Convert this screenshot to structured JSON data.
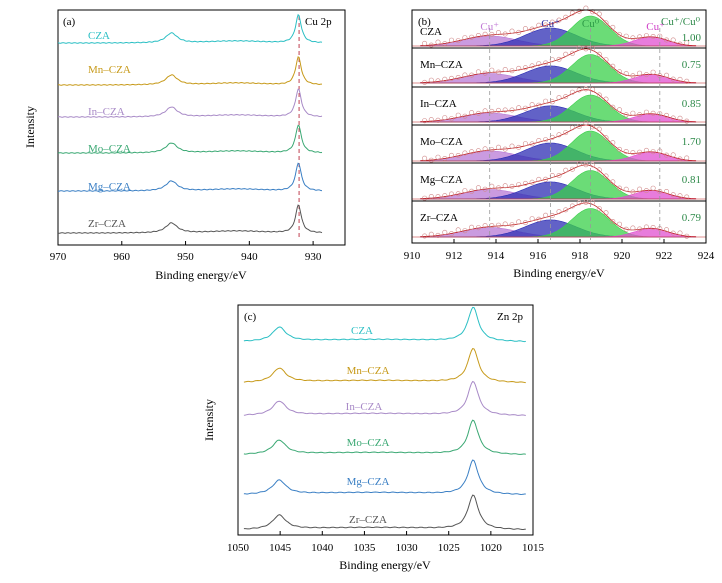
{
  "chart_data": [
    {
      "type": "line",
      "panel_label": "(a)",
      "title": "Cu 2p",
      "xlabel": "Binding energy/eV",
      "ylabel": "Intensity",
      "xlim": [
        970,
        925
      ],
      "xticks": [
        970,
        960,
        950,
        940,
        930
      ],
      "reference_line": 932.2,
      "series": [
        {
          "name": "CZA",
          "color": "#2bbfc4"
        },
        {
          "name": "Mn–CZA",
          "color": "#c79a1a"
        },
        {
          "name": "In–CZA",
          "color": "#a88ac7"
        },
        {
          "name": "Mo–CZA",
          "color": "#3aa873"
        },
        {
          "name": "Mg–CZA",
          "color": "#3a7fc4"
        },
        {
          "name": "Zr–CZA",
          "color": "#555555"
        }
      ],
      "peaks": [
        952.2,
        932.3
      ]
    },
    {
      "type": "area",
      "panel_label": "(b)",
      "xlabel": "Binding energy/eV",
      "xlim": [
        910,
        924
      ],
      "xticks": [
        910,
        912,
        914,
        916,
        918,
        920,
        922,
        924
      ],
      "ratio_header": "Cu⁺/Cu⁰",
      "component_labels": [
        {
          "label": "Cu⁺",
          "at": 913.7,
          "color": "#c27bd6"
        },
        {
          "label": "Cu⁺",
          "at": 916.6,
          "color": "#2828a0"
        },
        {
          "label": "Cu⁰",
          "at": 918.5,
          "color": "#2e9c48"
        },
        {
          "label": "Cu⁺",
          "at": 921.6,
          "color": "#d040c8"
        }
      ],
      "dashed_lines": [
        913.7,
        916.6,
        918.5,
        921.8
      ],
      "series": [
        {
          "name": "CZA",
          "ratio": "1.00"
        },
        {
          "name": "Mn–CZA",
          "ratio": "0.75"
        },
        {
          "name": "In–CZA",
          "ratio": "0.85"
        },
        {
          "name": "Mo–CZA",
          "ratio": "1.70"
        },
        {
          "name": "Mg–CZA",
          "ratio": "0.81"
        },
        {
          "name": "Zr–CZA",
          "ratio": "0.79"
        }
      ]
    },
    {
      "type": "line",
      "panel_label": "(c)",
      "title": "Zn 2p",
      "xlabel": "Binding energy/eV",
      "ylabel": "Intensity",
      "xlim": [
        1050,
        1015
      ],
      "xticks": [
        1050,
        1045,
        1040,
        1035,
        1030,
        1025,
        1020,
        1015
      ],
      "series": [
        {
          "name": "CZA",
          "color": "#2bbfc4"
        },
        {
          "name": "Mn–CZA",
          "color": "#c79a1a"
        },
        {
          "name": "In–CZA",
          "color": "#a88ac7"
        },
        {
          "name": "Mo–CZA",
          "color": "#3aa873"
        },
        {
          "name": "Mg–CZA",
          "color": "#3a7fc4"
        },
        {
          "name": "Zr–CZA",
          "color": "#555555"
        }
      ],
      "peaks": [
        1045.1,
        1022.1
      ]
    }
  ]
}
